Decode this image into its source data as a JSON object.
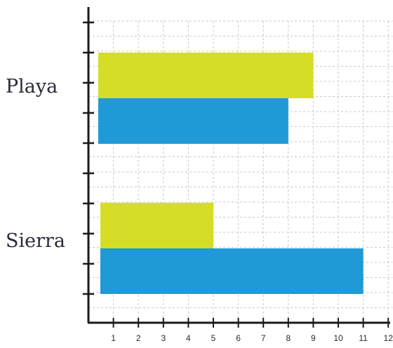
{
  "chart_data": {
    "type": "bar",
    "orientation": "horizontal",
    "categories": [
      "Playa",
      "Sierra"
    ],
    "series": [
      {
        "color": "#d5dd27",
        "values": [
          9,
          5
        ]
      },
      {
        "color": "#1f9ad6",
        "values": [
          8,
          11
        ]
      }
    ],
    "xlim": [
      0,
      12
    ],
    "x_ticks": [
      "1",
      "2",
      "3",
      "4",
      "5",
      "6",
      "7",
      "8",
      "9",
      "10",
      "11",
      "12"
    ],
    "title": "",
    "xlabel": "",
    "ylabel": "",
    "grid": true,
    "grid_style": "dashed",
    "legend": "none"
  }
}
